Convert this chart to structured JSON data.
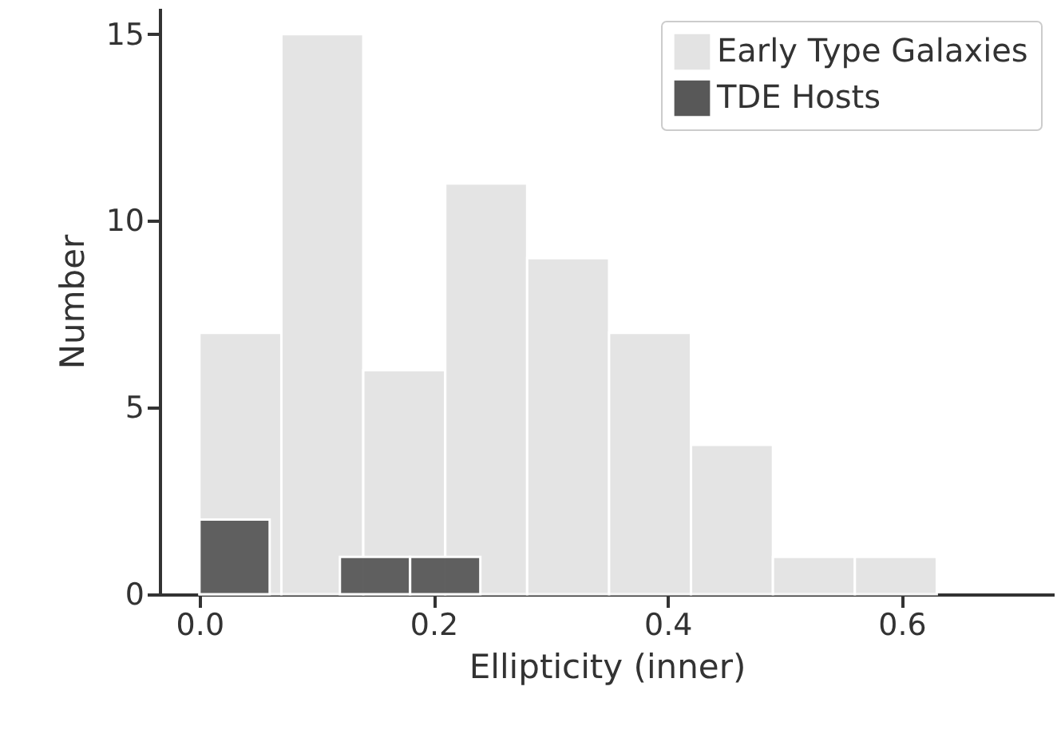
{
  "chart_data": {
    "type": "histogram",
    "xlabel": "Ellipticity (inner)",
    "ylabel": "Number",
    "xlim": [
      -0.034,
      0.73
    ],
    "xticks": [
      {
        "value": 0,
        "label": "0.0"
      },
      0.2,
      0.4,
      0.6
    ],
    "grid": false,
    "ylim": [
      0,
      15.7
    ],
    "yticks": [
      0,
      5,
      10,
      15
    ],
    "legend": "top right",
    "bins": [
      0,
      0.07,
      0.14,
      0.21,
      0.28,
      0.35,
      0.42,
      0.49,
      0.56,
      0.63
    ],
    "series": [
      {
        "name": "Early Type Galaxies",
        "color": "#e3e3e3",
        "values": [
          7,
          15,
          6,
          11,
          9,
          7,
          4,
          1,
          1
        ]
      },
      {
        "name": "TDE Hosts",
        "color": "#585858",
        "bins": [
          0,
          0.06,
          0.12,
          0.18,
          0.24
        ],
        "values": [
          2,
          0,
          1,
          1
        ]
      }
    ]
  }
}
